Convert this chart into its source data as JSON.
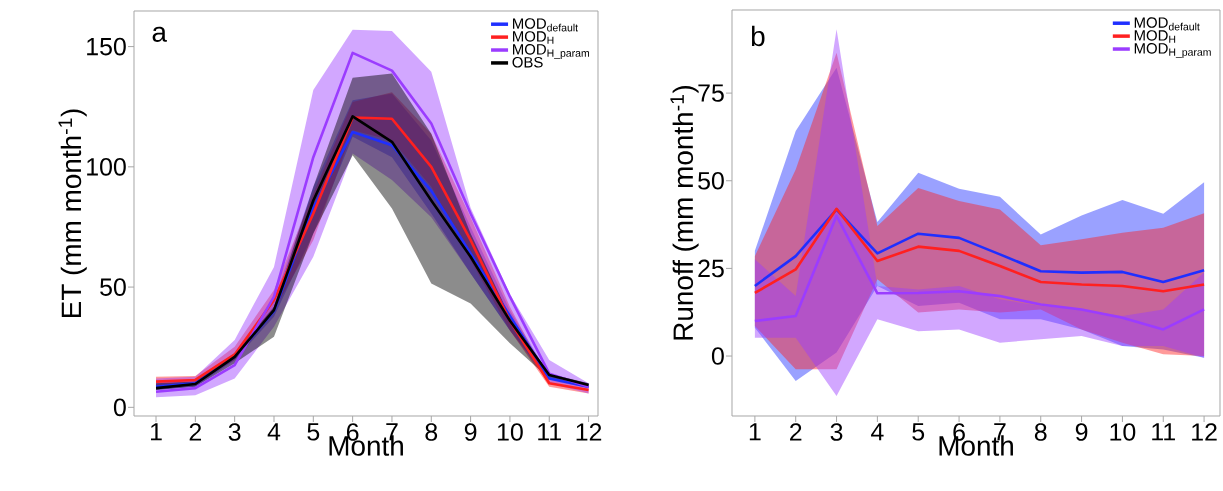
{
  "chart_data": [
    {
      "type": "line",
      "xlabel": "Month",
      "ylabel": "ET (mm month$^{-1}$)",
      "annotations": [
        "a"
      ],
      "legend": "top right",
      "grid": false,
      "categories": [
        "1",
        "2",
        "3",
        "4",
        "5",
        "6",
        "7",
        "8",
        "9",
        "10",
        "11",
        "12"
      ],
      "ylim": [
        -3.6,
        164.8
      ],
      "yticks": [
        0,
        50,
        100,
        150
      ],
      "series": [
        {
          "name": "MOD$_{default}$",
          "color": "#1f2fff",
          "values": [
            8.6,
            10,
            21,
            40,
            83,
            114.5,
            109,
            90,
            64,
            38,
            12,
            8.6
          ],
          "lower": [
            7.2,
            8.6,
            19.7,
            37.7,
            72.3,
            112.5,
            104,
            80.6,
            55.7,
            32,
            11.4,
            7.9
          ],
          "upper": [
            10.2,
            11.4,
            22.4,
            44.6,
            91.7,
            127.7,
            130.5,
            111,
            75,
            40.4,
            13.4,
            10
          ]
        },
        {
          "name": "MOD$_{H}$",
          "color": "#ff2020",
          "values": [
            10.7,
            11.4,
            22,
            44.6,
            80.6,
            120.5,
            120,
            100,
            69.5,
            36,
            10,
            7.2
          ],
          "lower": [
            8.6,
            10,
            19.7,
            40.4,
            69.5,
            115.2,
            111,
            91.7,
            61.2,
            32,
            8.6,
            5.8
          ],
          "upper": [
            12.7,
            13,
            25.2,
            48.8,
            89,
            127,
            131,
            113.8,
            79,
            41.8,
            11.4,
            8.6
          ]
        },
        {
          "name": "MOD$_{H_param}$",
          "color": "#9b3cff",
          "values": [
            6.5,
            8,
            17.6,
            46,
            104,
            147.4,
            140,
            118,
            80.6,
            46,
            14,
            8.6
          ],
          "lower": [
            4.2,
            5,
            12,
            33.5,
            62.6,
            105.5,
            94.5,
            79,
            55.7,
            32,
            10,
            5.8
          ],
          "upper": [
            12,
            12.7,
            28,
            58.4,
            131.9,
            157,
            156.5,
            139.5,
            83,
            47,
            19.7,
            10
          ]
        },
        {
          "name": "OBS",
          "color": "#000000",
          "values": [
            8,
            9.7,
            21,
            40.4,
            86,
            121,
            110.4,
            86,
            62.6,
            36,
            13.4,
            9.3
          ],
          "lower": [
            7.2,
            8.6,
            18.3,
            29.4,
            72.3,
            104.8,
            82.7,
            51.5,
            43.2,
            26.6,
            12,
            8.6
          ],
          "upper": [
            10,
            10.7,
            22.4,
            41.8,
            91.7,
            137,
            138.8,
            113.8,
            72.3,
            37.7,
            14,
            10
          ]
        }
      ]
    },
    {
      "type": "line",
      "xlabel": "Month",
      "ylabel": "Runoff (mm month$^{-1}$)",
      "annotations": [
        "b"
      ],
      "legend": "top right",
      "grid": false,
      "categories": [
        "1",
        "2",
        "3",
        "4",
        "5",
        "6",
        "7",
        "8",
        "9",
        "10",
        "11",
        "12"
      ],
      "ylim": [
        -17.1,
        98.7
      ],
      "yticks": [
        0,
        25,
        50,
        75
      ],
      "series": [
        {
          "name": "MOD$_{default}$",
          "color": "#1f2fff",
          "values": [
            20,
            28.5,
            41.8,
            29.3,
            34.9,
            33.7,
            29,
            24.2,
            23.8,
            24,
            21.1,
            24.5
          ],
          "lower": [
            8.1,
            -7.1,
            1,
            20,
            14.3,
            15.2,
            10.5,
            10.5,
            7.6,
            2.9,
            1.9,
            -0.5
          ],
          "upper": [
            30,
            64.2,
            82.2,
            38.2,
            52.3,
            47.7,
            45.4,
            34.7,
            40.1,
            44.5,
            40.6,
            49.6
          ]
        },
        {
          "name": "MOD$_{H}$",
          "color": "#ff2020",
          "values": [
            18,
            24.7,
            42,
            27.1,
            31.2,
            30,
            25.7,
            21.1,
            20.4,
            20,
            18.5,
            20.4
          ],
          "lower": [
            8.6,
            -3.8,
            -3.8,
            21.9,
            12.4,
            13.3,
            12.4,
            13.3,
            7.6,
            3.8,
            0.5,
            0
          ],
          "upper": [
            28.5,
            53.2,
            86.5,
            37.1,
            47.9,
            44.2,
            41.8,
            31.6,
            33.3,
            35.2,
            36.6,
            40.7
          ]
        },
        {
          "name": "MOD$_{H_param}$",
          "color": "#9b3cff",
          "values": [
            10,
            11.4,
            40,
            17.9,
            18,
            18.5,
            17.1,
            14.7,
            13.3,
            10.9,
            7.6,
            13.3
          ],
          "lower": [
            5.2,
            5.2,
            -11.4,
            10.5,
            7.1,
            7.6,
            3.8,
            4.8,
            5.7,
            2.9,
            2.9,
            -0.5
          ],
          "upper": [
            27.6,
            17.1,
            93.2,
            20,
            19,
            20,
            16.2,
            14.3,
            13.3,
            11.4,
            13.3,
            23.8
          ]
        }
      ]
    }
  ]
}
